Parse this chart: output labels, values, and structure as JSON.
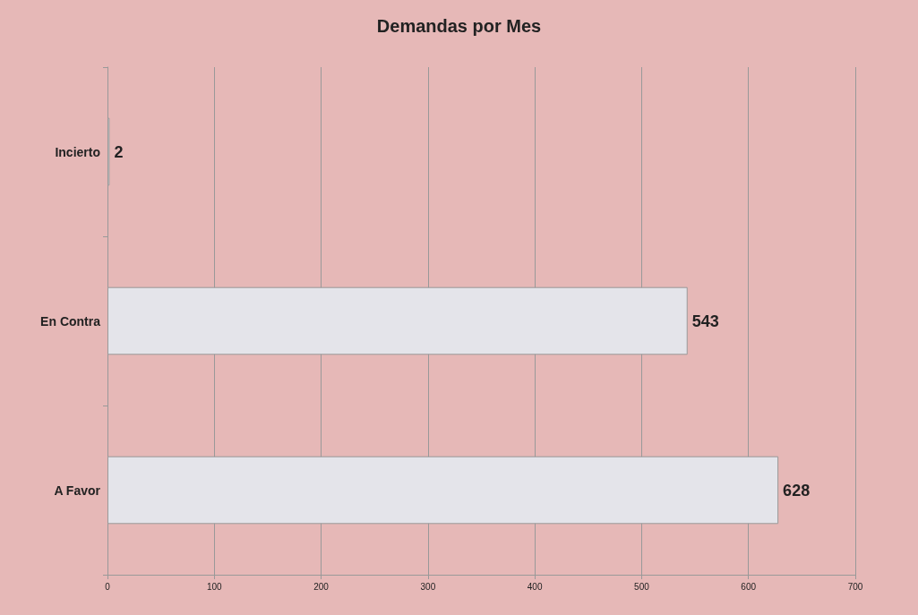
{
  "chart_data": {
    "type": "bar",
    "title": "Demandas por Mes",
    "orientation": "horizontal",
    "categories": [
      "Incierto",
      "En Contra",
      "A Favor"
    ],
    "values": [
      2,
      543,
      628
    ],
    "color": "#e4e4ea",
    "xlim": [
      0,
      700
    ],
    "xticks": [
      0,
      100,
      200,
      300,
      400,
      500,
      600,
      700
    ],
    "grid": "x",
    "data_labels": true
  }
}
